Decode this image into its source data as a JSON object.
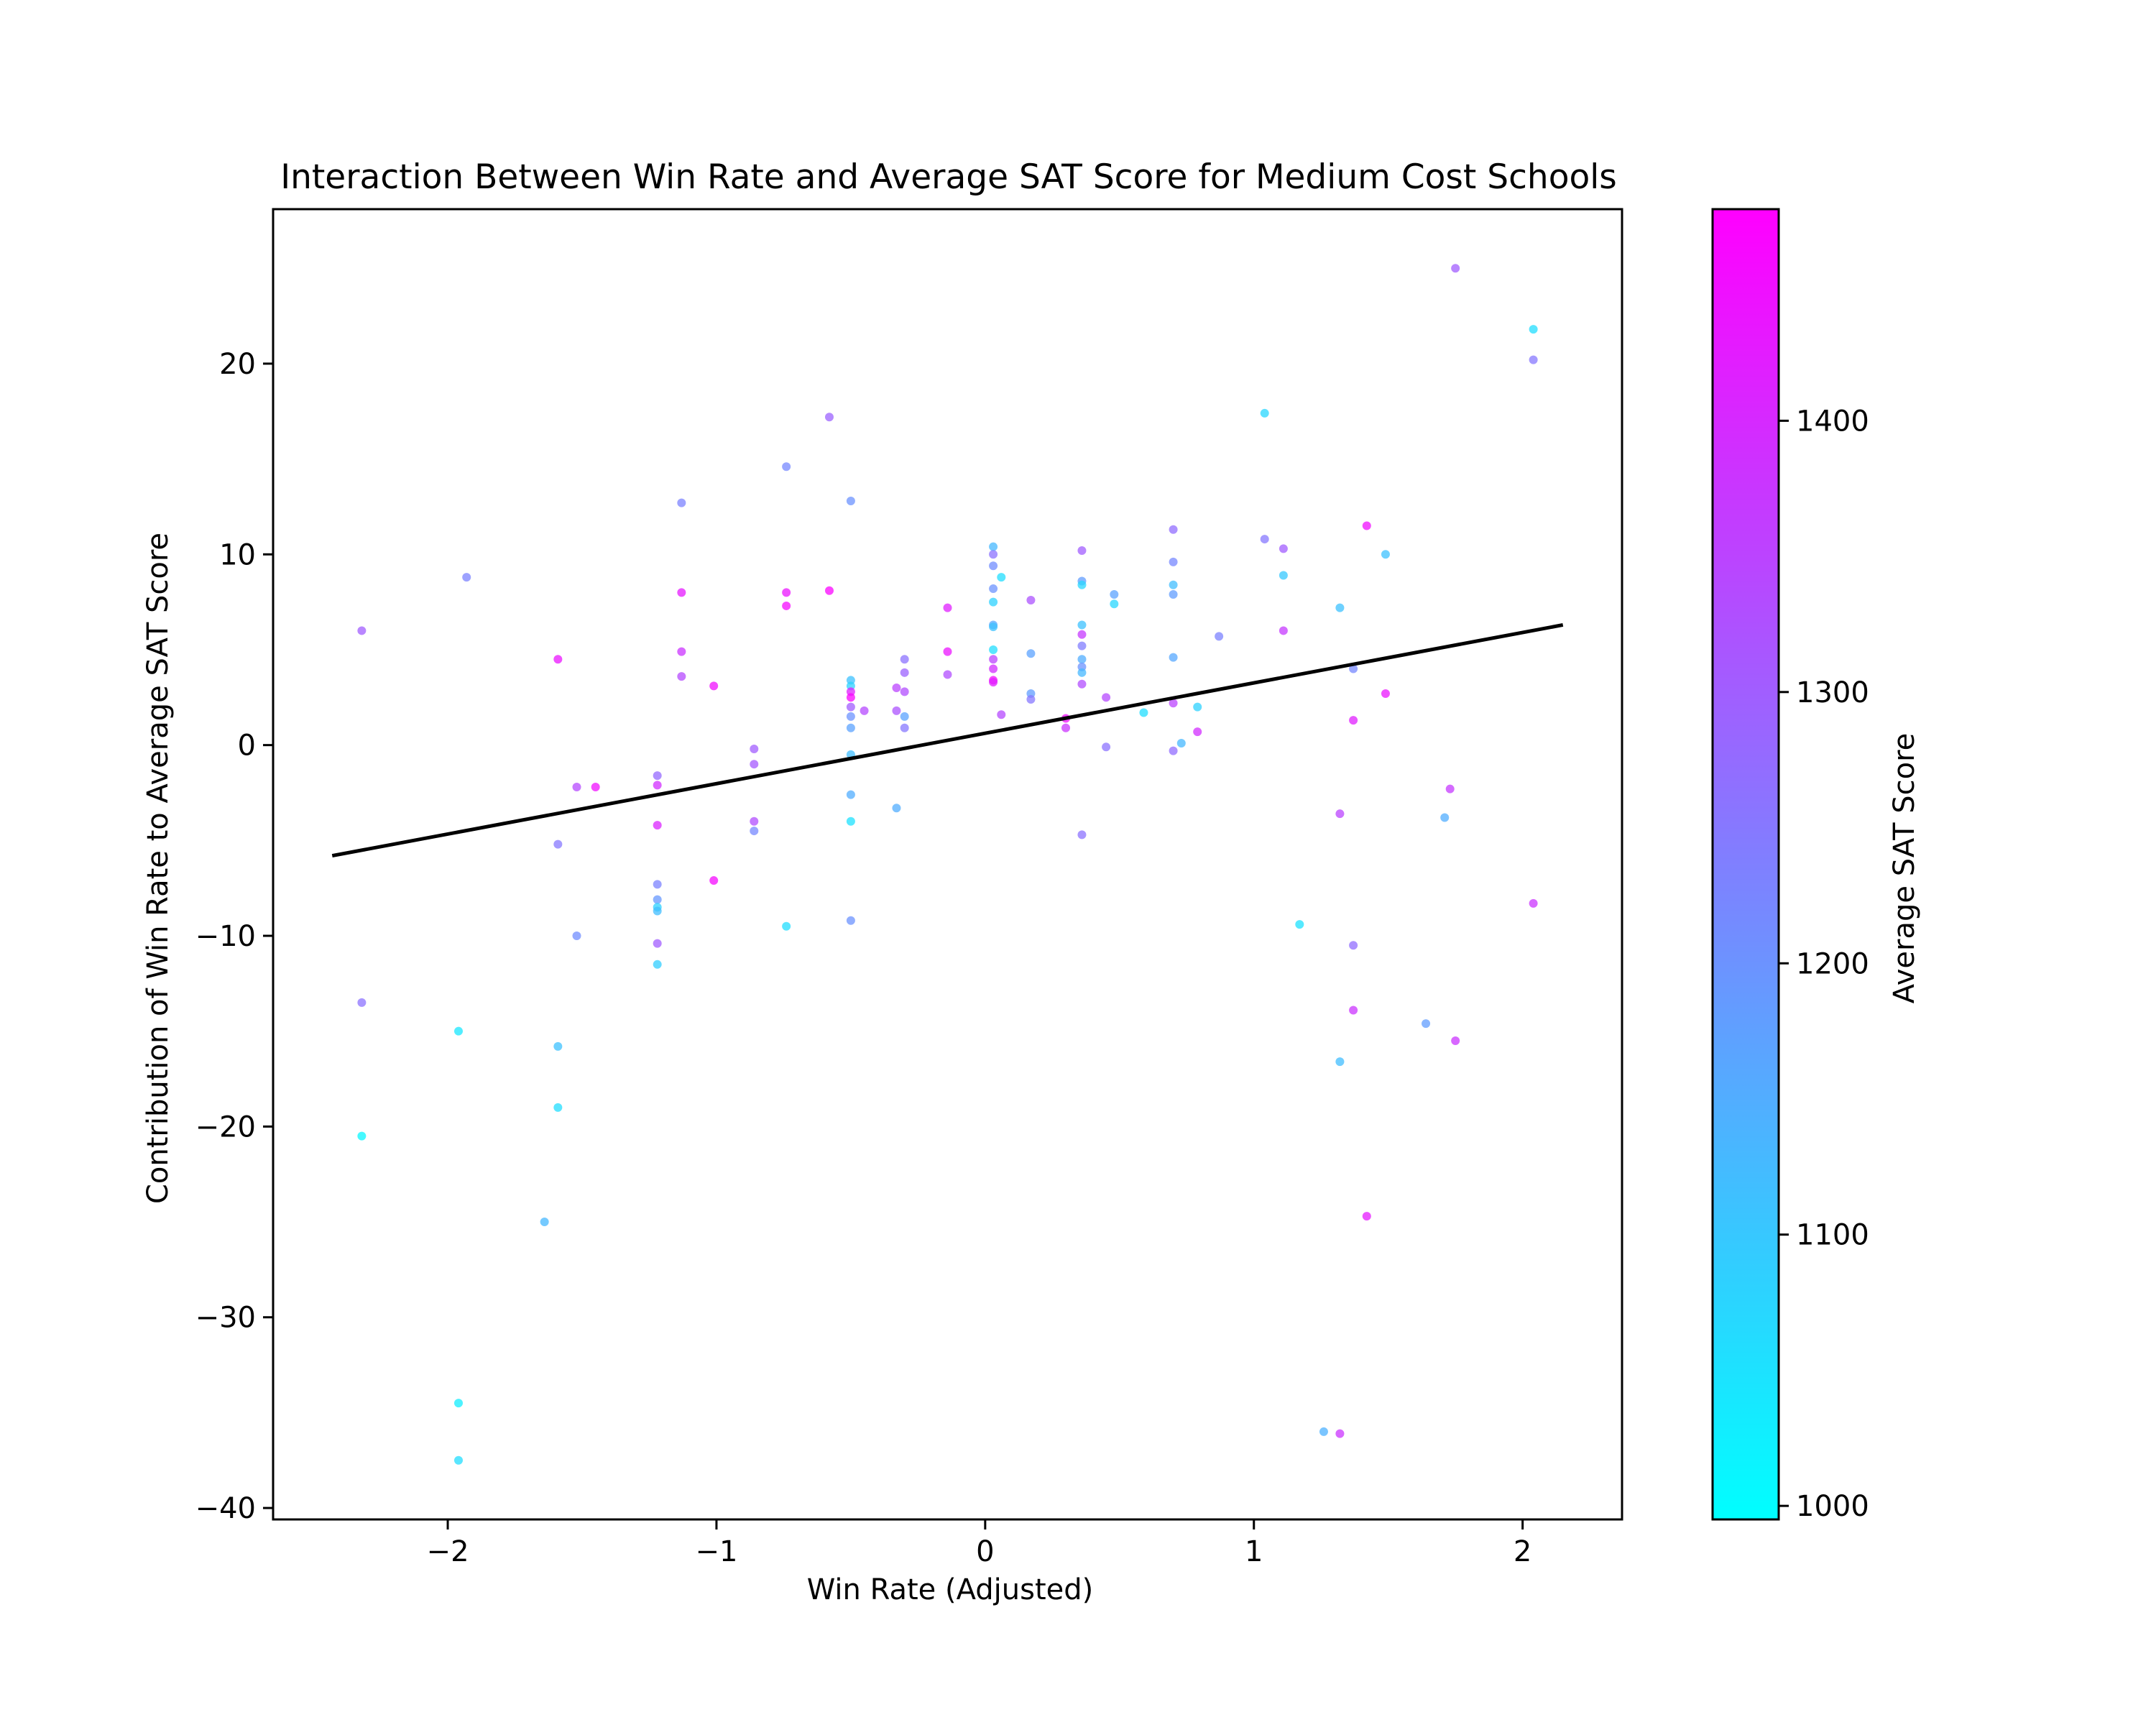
{
  "chart_data": {
    "type": "scatter",
    "title": "Interaction Between Win Rate and Average SAT Score for Medium Cost Schools",
    "xlabel": "Win Rate (Adjusted)",
    "ylabel": "Contribution of Win Rate to Average SAT Score",
    "xlim": [
      -2.65,
      2.37
    ],
    "ylim": [
      -40.6,
      28.1
    ],
    "xticks": [
      -2,
      -1,
      0,
      1,
      2
    ],
    "xtick_labels": [
      "−2",
      "−1",
      "0",
      "1",
      "2"
    ],
    "yticks": [
      -40,
      -30,
      -20,
      -10,
      0,
      10,
      20
    ],
    "ytick_labels": [
      "−40",
      "−30",
      "−20",
      "−10",
      "0",
      "10",
      "20"
    ],
    "grid": false,
    "fit_line": {
      "x": [
        -2.43,
        2.15
      ],
      "y": [
        -5.8,
        6.3
      ],
      "color": "#000000"
    },
    "colorbar": {
      "label": "Average SAT Score",
      "min": 995,
      "max": 1478,
      "ticks": [
        1000,
        1100,
        1200,
        1300,
        1400
      ],
      "tick_labels": [
        "1000",
        "1100",
        "1200",
        "1300",
        "1400"
      ],
      "colormap": "cool",
      "color_low": "#00ffff",
      "color_high": "#ff00ff"
    },
    "series": [
      {
        "points": [
          {
            "x": -2.32,
            "y": 6.0,
            "sat": 1300
          },
          {
            "x": -2.32,
            "y": -13.5,
            "sat": 1260
          },
          {
            "x": -2.32,
            "y": -20.5,
            "sat": 1010
          },
          {
            "x": -1.96,
            "y": -15.0,
            "sat": 1040
          },
          {
            "x": -1.96,
            "y": -34.5,
            "sat": 1030
          },
          {
            "x": -1.96,
            "y": -37.5,
            "sat": 1060
          },
          {
            "x": -1.93,
            "y": 8.8,
            "sat": 1230
          },
          {
            "x": -1.64,
            "y": -25.0,
            "sat": 1130
          },
          {
            "x": -1.59,
            "y": 4.5,
            "sat": 1440
          },
          {
            "x": -1.59,
            "y": -5.2,
            "sat": 1250
          },
          {
            "x": -1.59,
            "y": -15.8,
            "sat": 1110
          },
          {
            "x": -1.59,
            "y": -19.0,
            "sat": 1060
          },
          {
            "x": -1.52,
            "y": -2.2,
            "sat": 1340
          },
          {
            "x": -1.52,
            "y": -10.0,
            "sat": 1210
          },
          {
            "x": -1.45,
            "y": -2.2,
            "sat": 1450
          },
          {
            "x": -1.22,
            "y": -1.6,
            "sat": 1280
          },
          {
            "x": -1.22,
            "y": -2.1,
            "sat": 1390
          },
          {
            "x": -1.22,
            "y": -4.2,
            "sat": 1410
          },
          {
            "x": -1.22,
            "y": -7.3,
            "sat": 1230
          },
          {
            "x": -1.22,
            "y": -8.1,
            "sat": 1190
          },
          {
            "x": -1.22,
            "y": -8.5,
            "sat": 1080
          },
          {
            "x": -1.22,
            "y": -8.7,
            "sat": 1120
          },
          {
            "x": -1.22,
            "y": -10.4,
            "sat": 1300
          },
          {
            "x": -1.22,
            "y": -11.5,
            "sat": 1090
          },
          {
            "x": -1.13,
            "y": 12.7,
            "sat": 1230
          },
          {
            "x": -1.13,
            "y": 8.0,
            "sat": 1430
          },
          {
            "x": -1.13,
            "y": 4.9,
            "sat": 1380
          },
          {
            "x": -1.13,
            "y": 3.6,
            "sat": 1340
          },
          {
            "x": -1.01,
            "y": 3.1,
            "sat": 1450
          },
          {
            "x": -1.01,
            "y": -7.1,
            "sat": 1460
          },
          {
            "x": -0.86,
            "y": -0.2,
            "sat": 1300
          },
          {
            "x": -0.86,
            "y": -1.0,
            "sat": 1310
          },
          {
            "x": -0.86,
            "y": -4.0,
            "sat": 1330
          },
          {
            "x": -0.86,
            "y": -4.5,
            "sat": 1220
          },
          {
            "x": -0.74,
            "y": 14.6,
            "sat": 1220
          },
          {
            "x": -0.74,
            "y": 8.0,
            "sat": 1440
          },
          {
            "x": -0.74,
            "y": 7.3,
            "sat": 1460
          },
          {
            "x": -0.74,
            "y": -9.5,
            "sat": 1060
          },
          {
            "x": -0.58,
            "y": 17.2,
            "sat": 1290
          },
          {
            "x": -0.58,
            "y": 8.1,
            "sat": 1470
          },
          {
            "x": -0.5,
            "y": 12.8,
            "sat": 1200
          },
          {
            "x": -0.5,
            "y": 3.4,
            "sat": 1110
          },
          {
            "x": -0.5,
            "y": 3.1,
            "sat": 1080
          },
          {
            "x": -0.5,
            "y": 2.8,
            "sat": 1420
          },
          {
            "x": -0.5,
            "y": 2.5,
            "sat": 1470
          },
          {
            "x": -0.5,
            "y": 2.0,
            "sat": 1300
          },
          {
            "x": -0.5,
            "y": 1.5,
            "sat": 1200
          },
          {
            "x": -0.5,
            "y": 0.9,
            "sat": 1170
          },
          {
            "x": -0.5,
            "y": -0.5,
            "sat": 1120
          },
          {
            "x": -0.5,
            "y": -2.6,
            "sat": 1150
          },
          {
            "x": -0.5,
            "y": -4.0,
            "sat": 1050
          },
          {
            "x": -0.5,
            "y": -9.2,
            "sat": 1200
          },
          {
            "x": -0.45,
            "y": 1.8,
            "sat": 1340
          },
          {
            "x": -0.33,
            "y": 3.0,
            "sat": 1350
          },
          {
            "x": -0.33,
            "y": 1.8,
            "sat": 1320
          },
          {
            "x": -0.33,
            "y": -3.3,
            "sat": 1150
          },
          {
            "x": -0.3,
            "y": 4.5,
            "sat": 1260
          },
          {
            "x": -0.3,
            "y": 3.8,
            "sat": 1290
          },
          {
            "x": -0.3,
            "y": 2.8,
            "sat": 1330
          },
          {
            "x": -0.3,
            "y": 1.5,
            "sat": 1170
          },
          {
            "x": -0.3,
            "y": 0.9,
            "sat": 1250
          },
          {
            "x": -0.14,
            "y": 7.2,
            "sat": 1420
          },
          {
            "x": -0.14,
            "y": 4.9,
            "sat": 1440
          },
          {
            "x": -0.14,
            "y": 3.7,
            "sat": 1330
          },
          {
            "x": 0.03,
            "y": 10.4,
            "sat": 1130
          },
          {
            "x": 0.03,
            "y": 10.0,
            "sat": 1260
          },
          {
            "x": 0.03,
            "y": 9.4,
            "sat": 1210
          },
          {
            "x": 0.03,
            "y": 8.2,
            "sat": 1200
          },
          {
            "x": 0.03,
            "y": 7.5,
            "sat": 1080
          },
          {
            "x": 0.03,
            "y": 6.3,
            "sat": 1160
          },
          {
            "x": 0.03,
            "y": 6.2,
            "sat": 1110
          },
          {
            "x": 0.03,
            "y": 5.0,
            "sat": 1060
          },
          {
            "x": 0.03,
            "y": 4.5,
            "sat": 1350
          },
          {
            "x": 0.03,
            "y": 4.0,
            "sat": 1390
          },
          {
            "x": 0.03,
            "y": 3.4,
            "sat": 1460
          },
          {
            "x": 0.03,
            "y": 3.3,
            "sat": 1420
          },
          {
            "x": 0.06,
            "y": 8.8,
            "sat": 1060
          },
          {
            "x": 0.06,
            "y": 1.6,
            "sat": 1340
          },
          {
            "x": 0.17,
            "y": 7.6,
            "sat": 1320
          },
          {
            "x": 0.17,
            "y": 4.8,
            "sat": 1170
          },
          {
            "x": 0.17,
            "y": 2.7,
            "sat": 1180
          },
          {
            "x": 0.17,
            "y": 2.4,
            "sat": 1250
          },
          {
            "x": 0.3,
            "y": 1.4,
            "sat": 1450
          },
          {
            "x": 0.3,
            "y": 0.9,
            "sat": 1380
          },
          {
            "x": 0.36,
            "y": 10.2,
            "sat": 1300
          },
          {
            "x": 0.36,
            "y": 8.6,
            "sat": 1180
          },
          {
            "x": 0.36,
            "y": 8.4,
            "sat": 1070
          },
          {
            "x": 0.36,
            "y": 6.3,
            "sat": 1110
          },
          {
            "x": 0.36,
            "y": 5.8,
            "sat": 1370
          },
          {
            "x": 0.36,
            "y": 5.2,
            "sat": 1240
          },
          {
            "x": 0.36,
            "y": 4.5,
            "sat": 1150
          },
          {
            "x": 0.36,
            "y": 4.1,
            "sat": 1200
          },
          {
            "x": 0.36,
            "y": 3.8,
            "sat": 1130
          },
          {
            "x": 0.36,
            "y": 3.2,
            "sat": 1330
          },
          {
            "x": 0.36,
            "y": -4.7,
            "sat": 1260
          },
          {
            "x": 0.45,
            "y": 2.5,
            "sat": 1340
          },
          {
            "x": 0.45,
            "y": -0.1,
            "sat": 1260
          },
          {
            "x": 0.48,
            "y": 7.9,
            "sat": 1170
          },
          {
            "x": 0.48,
            "y": 7.4,
            "sat": 1070
          },
          {
            "x": 0.59,
            "y": 1.7,
            "sat": 1060
          },
          {
            "x": 0.7,
            "y": 11.3,
            "sat": 1270
          },
          {
            "x": 0.7,
            "y": 9.6,
            "sat": 1220
          },
          {
            "x": 0.7,
            "y": 8.4,
            "sat": 1120
          },
          {
            "x": 0.7,
            "y": 7.9,
            "sat": 1180
          },
          {
            "x": 0.7,
            "y": 4.6,
            "sat": 1160
          },
          {
            "x": 0.7,
            "y": 2.2,
            "sat": 1350
          },
          {
            "x": 0.7,
            "y": -0.3,
            "sat": 1270
          },
          {
            "x": 0.73,
            "y": 0.1,
            "sat": 1130
          },
          {
            "x": 0.79,
            "y": 2.0,
            "sat": 1080
          },
          {
            "x": 0.79,
            "y": 0.7,
            "sat": 1390
          },
          {
            "x": 0.87,
            "y": 5.7,
            "sat": 1230
          },
          {
            "x": 1.04,
            "y": 17.4,
            "sat": 1070
          },
          {
            "x": 1.04,
            "y": 10.8,
            "sat": 1250
          },
          {
            "x": 1.11,
            "y": 10.3,
            "sat": 1300
          },
          {
            "x": 1.11,
            "y": 8.9,
            "sat": 1100
          },
          {
            "x": 1.11,
            "y": 6.0,
            "sat": 1370
          },
          {
            "x": 1.17,
            "y": -9.4,
            "sat": 1050
          },
          {
            "x": 1.26,
            "y": -36.0,
            "sat": 1140
          },
          {
            "x": 1.32,
            "y": 7.2,
            "sat": 1110
          },
          {
            "x": 1.32,
            "y": -3.6,
            "sat": 1350
          },
          {
            "x": 1.32,
            "y": -16.6,
            "sat": 1120
          },
          {
            "x": 1.32,
            "y": -36.1,
            "sat": 1380
          },
          {
            "x": 1.37,
            "y": 4.0,
            "sat": 1220
          },
          {
            "x": 1.37,
            "y": 1.3,
            "sat": 1420
          },
          {
            "x": 1.37,
            "y": -10.5,
            "sat": 1270
          },
          {
            "x": 1.37,
            "y": -13.9,
            "sat": 1380
          },
          {
            "x": 1.42,
            "y": 11.5,
            "sat": 1450
          },
          {
            "x": 1.42,
            "y": -24.7,
            "sat": 1430
          },
          {
            "x": 1.49,
            "y": 10.0,
            "sat": 1110
          },
          {
            "x": 1.49,
            "y": 2.7,
            "sat": 1440
          },
          {
            "x": 1.64,
            "y": -14.6,
            "sat": 1180
          },
          {
            "x": 1.71,
            "y": -3.8,
            "sat": 1150
          },
          {
            "x": 1.73,
            "y": -2.3,
            "sat": 1370
          },
          {
            "x": 1.75,
            "y": 25.0,
            "sat": 1300
          },
          {
            "x": 1.75,
            "y": -15.5,
            "sat": 1380
          },
          {
            "x": 2.04,
            "y": 21.8,
            "sat": 1060
          },
          {
            "x": 2.04,
            "y": 20.2,
            "sat": 1250
          },
          {
            "x": 2.04,
            "y": -8.3,
            "sat": 1380
          }
        ]
      }
    ]
  }
}
